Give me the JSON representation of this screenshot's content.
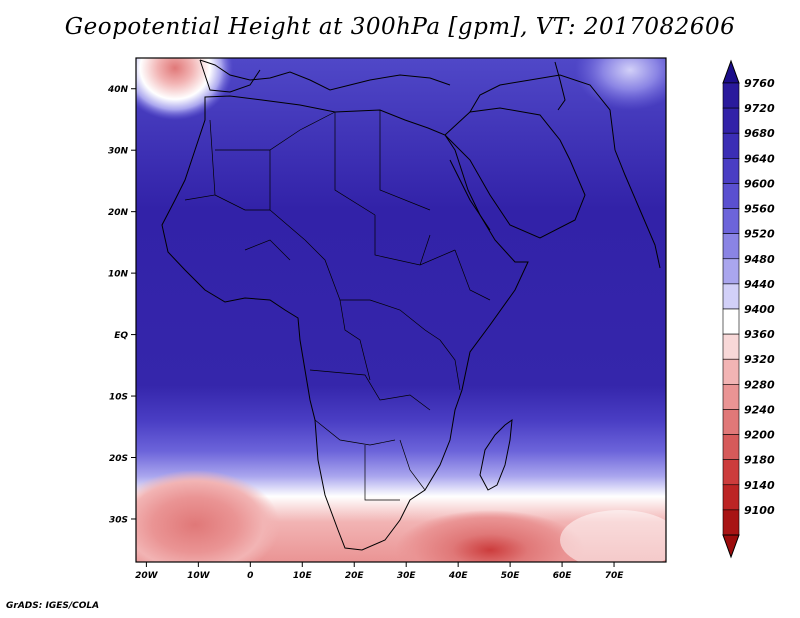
{
  "title": "Geopotential Height at 300hPa [gpm], VT: 2017082606",
  "footer": "GrADS: IGES/COLA",
  "map": {
    "lon_range": [
      -22,
      80
    ],
    "lat_range": [
      -37,
      45
    ],
    "lat_ticks": [
      {
        "value": 40,
        "label": "40N"
      },
      {
        "value": 30,
        "label": "30N"
      },
      {
        "value": 20,
        "label": "20N"
      },
      {
        "value": 10,
        "label": "10N"
      },
      {
        "value": 0,
        "label": "EQ"
      },
      {
        "value": -10,
        "label": "10S"
      },
      {
        "value": -20,
        "label": "20S"
      },
      {
        "value": -30,
        "label": "30S"
      }
    ],
    "lon_ticks": [
      {
        "value": -20,
        "label": "20W"
      },
      {
        "value": -10,
        "label": "10W"
      },
      {
        "value": 0,
        "label": "0"
      },
      {
        "value": 10,
        "label": "10E"
      },
      {
        "value": 20,
        "label": "20E"
      },
      {
        "value": 30,
        "label": "30E"
      },
      {
        "value": 40,
        "label": "40E"
      },
      {
        "value": 50,
        "label": "50E"
      },
      {
        "value": 60,
        "label": "60E"
      },
      {
        "value": 70,
        "label": "70E"
      }
    ]
  },
  "colorbar": {
    "labels": [
      "9760",
      "9720",
      "9680",
      "9640",
      "9600",
      "9560",
      "9520",
      "9480",
      "9440",
      "9400",
      "9360",
      "9320",
      "9280",
      "9240",
      "9200",
      "9180",
      "9140",
      "9100"
    ],
    "colors": [
      "#2a1a9c",
      "#3222a8",
      "#3b2eb5",
      "#4a3ec4",
      "#5a50d0",
      "#6c64da",
      "#8a84e4",
      "#aaa6ee",
      "#d2d0f8",
      "#ffffff",
      "#f8d8d8",
      "#f2b4b4",
      "#ea9494",
      "#e07878",
      "#d65a5a",
      "#cc3c3c",
      "#bc2424",
      "#a81414"
    ],
    "top_arrow_color": "#1c0e8a",
    "bottom_arrow_color": "#9c0c0c"
  }
}
